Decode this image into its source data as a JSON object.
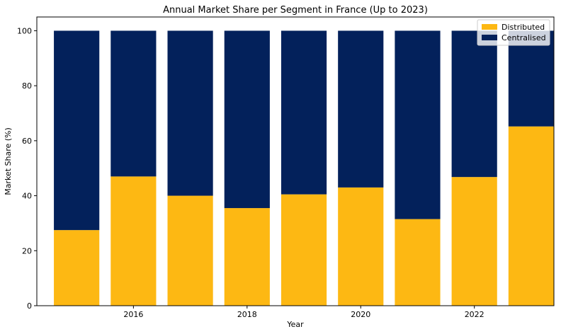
{
  "chart_data": {
    "type": "bar",
    "stacked": true,
    "title": "Annual Market Share per Segment in France (Up to 2023)",
    "xlabel": "Year",
    "ylabel": "Market Share (%)",
    "x": [
      2015,
      2016,
      2017,
      2018,
      2019,
      2020,
      2021,
      2022,
      2023
    ],
    "xlim": [
      2014.3,
      2023.4
    ],
    "xticks": [
      2016,
      2018,
      2020,
      2022
    ],
    "ylim": [
      0,
      105
    ],
    "yticks": [
      0,
      20,
      40,
      60,
      80,
      100
    ],
    "grid": false,
    "legend_position": "top-right",
    "series": [
      {
        "name": "Distributed",
        "color": "#FDB813",
        "values": [
          27.5,
          47,
          40,
          35.5,
          40.5,
          43,
          31.5,
          46.8,
          65.2
        ]
      },
      {
        "name": "Centralised",
        "color": "#03215B",
        "values": [
          72.5,
          53,
          60,
          64.5,
          59.5,
          57,
          68.5,
          53.2,
          34.8
        ]
      }
    ]
  }
}
